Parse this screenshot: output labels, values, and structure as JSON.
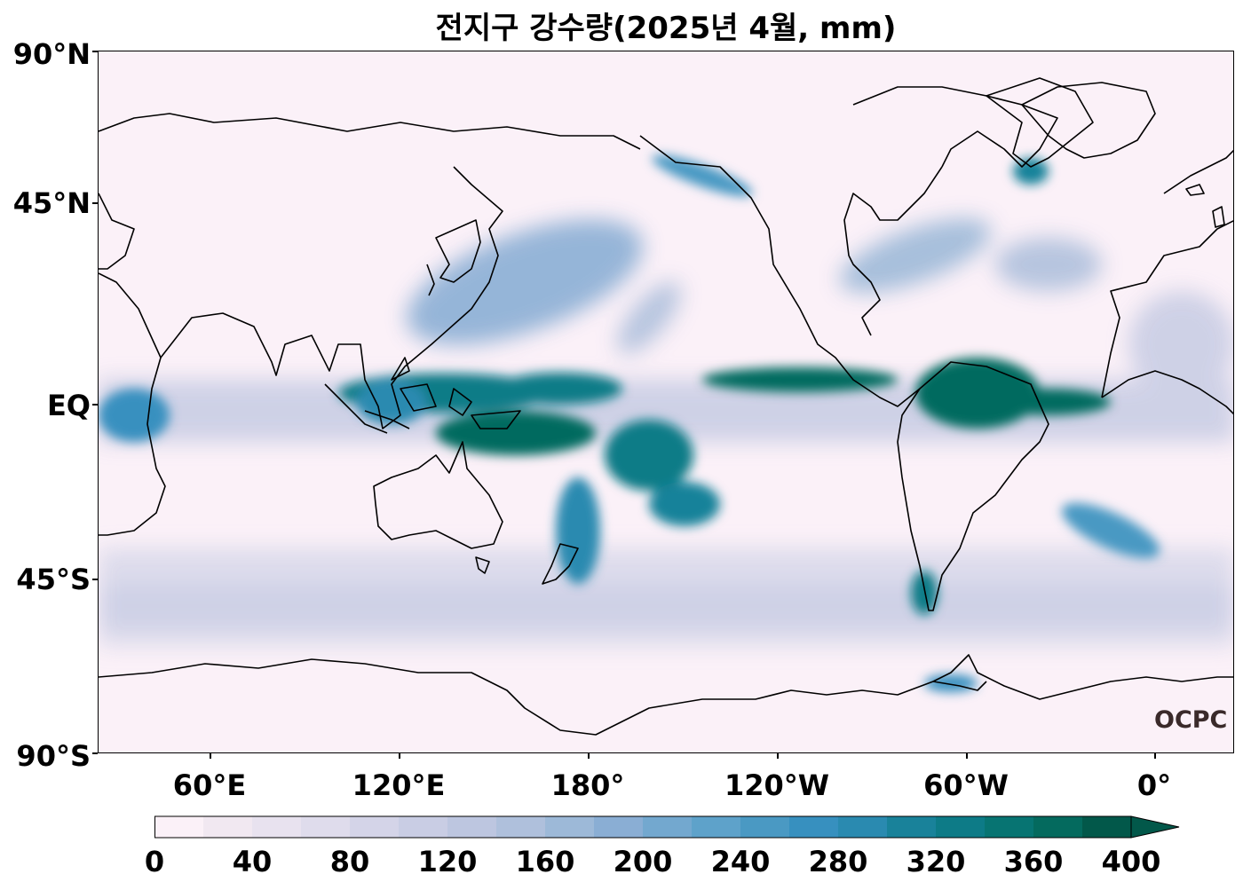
{
  "title": "전지구 강수량(2025년 4월, mm)",
  "lat_labels": [
    "90°N",
    "45°N",
    "EQ",
    "45°S",
    "90°S"
  ],
  "lon_labels": [
    "60°E",
    "120°E",
    "180°",
    "120°W",
    "60°W",
    "0°"
  ],
  "colorbar": {
    "tick_labels": [
      "0",
      "40",
      "80",
      "120",
      "160",
      "200",
      "240",
      "280",
      "320",
      "360",
      "400"
    ],
    "levels": [
      0,
      20,
      40,
      60,
      80,
      100,
      120,
      140,
      160,
      180,
      200,
      220,
      240,
      260,
      280,
      300,
      320,
      340,
      360,
      380,
      400
    ],
    "colors": [
      "#fbf1f8",
      "#f1e8f1",
      "#e8e2ef",
      "#dfdcec",
      "#d4d4e8",
      "#c9cde4",
      "#bdc6e0",
      "#afc0dc",
      "#9db9d8",
      "#8aaed4",
      "#73a8cf",
      "#5ea2ca",
      "#4a99c3",
      "#3790bf",
      "#2a8ab0",
      "#19829a",
      "#0d7b87",
      "#077472",
      "#046a5e",
      "#02584a"
    ],
    "extend": "max"
  },
  "logo_text": "OCPC"
}
